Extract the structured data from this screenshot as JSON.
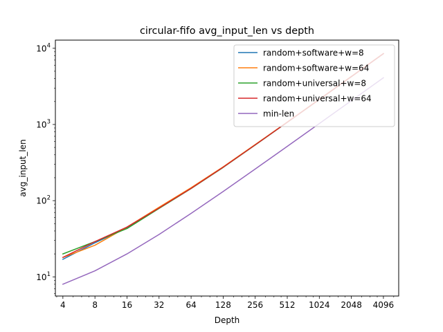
{
  "chart_data": {
    "type": "line",
    "title": "circular-fifo avg_input_len vs depth",
    "xlabel": "Depth",
    "ylabel": "avg_input_len",
    "x_scale": "log2",
    "y_scale": "log10",
    "xlim": [
      3.4,
      5700
    ],
    "ylim": [
      5.6,
      12800
    ],
    "x_ticks": [
      4,
      8,
      16,
      32,
      64,
      128,
      256,
      512,
      1024,
      2048,
      4096
    ],
    "x_tick_labels": [
      "4",
      "8",
      "16",
      "32",
      "64",
      "128",
      "256",
      "512",
      "1024",
      "2048",
      "4096"
    ],
    "y_ticks": [
      10,
      100,
      1000,
      10000
    ],
    "y_tick_labels": [
      {
        "base": "10",
        "exp": "1"
      },
      {
        "base": "10",
        "exp": "2"
      },
      {
        "base": "10",
        "exp": "3"
      },
      {
        "base": "10",
        "exp": "4"
      }
    ],
    "grid": false,
    "legend_position": "top-right",
    "x": [
      4,
      8,
      16,
      32,
      64,
      128,
      256,
      512,
      1024,
      2048,
      4096
    ],
    "series": [
      {
        "name": "random+software+w=8",
        "color": "#1f77b4",
        "values": [
          17,
          28,
          44,
          80,
          145,
          275,
          540,
          1070,
          2130,
          4250,
          8500
        ]
      },
      {
        "name": "random+software+w=64",
        "color": "#ff7f0e",
        "values": [
          18,
          26,
          45,
          82,
          148,
          278,
          545,
          1075,
          2140,
          4270,
          8540
        ]
      },
      {
        "name": "random+universal+w=8",
        "color": "#2ca02c",
        "values": [
          20,
          29,
          43,
          79,
          144,
          273,
          538,
          1068,
          2128,
          4248,
          8495
        ]
      },
      {
        "name": "random+universal+w=64",
        "color": "#d62728",
        "values": [
          18,
          29,
          45,
          80,
          145,
          275,
          540,
          1070,
          2130,
          4250,
          8500
        ]
      },
      {
        "name": "min-len",
        "color": "#9467bd",
        "values": [
          8,
          12,
          20,
          36,
          68,
          132,
          260,
          516,
          1028,
          2052,
          4100
        ]
      }
    ]
  }
}
